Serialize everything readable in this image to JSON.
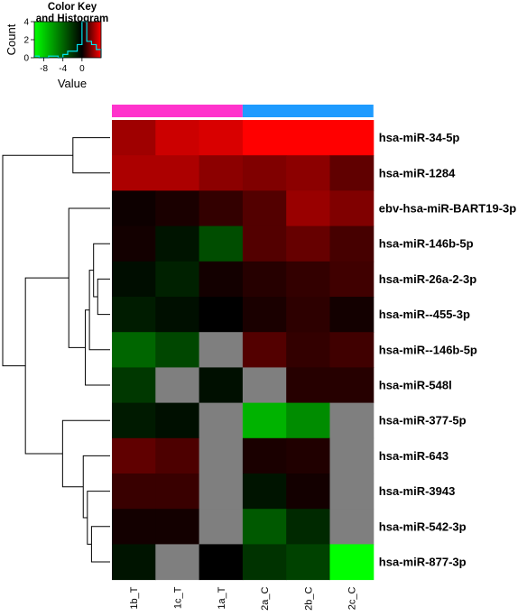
{
  "chart_data": {
    "type": "heatmap",
    "color_key": {
      "title_line1": "Color Key",
      "title_line2": "and Histogram",
      "xlabel": "Value",
      "ylabel": "Count",
      "x_ticks": [
        "-8",
        "-4",
        "0"
      ],
      "x_tick_values": [
        -8,
        -4,
        0
      ],
      "y_ticks": [
        "0",
        "2",
        "4"
      ],
      "y_tick_values": [
        0,
        2,
        4
      ],
      "value_range": [
        -10,
        4
      ],
      "count_range": [
        0,
        4
      ],
      "histogram_line_color": "#00e5ee"
    },
    "columns": [
      "1b_T",
      "1c_T",
      "1a_T",
      "2a_C",
      "2b_C",
      "2c_C"
    ],
    "column_groups": [
      {
        "columns": [
          "1b_T",
          "1c_T",
          "1a_T"
        ],
        "color": "#ff33cc"
      },
      {
        "columns": [
          "2a_C",
          "2b_C",
          "2c_C"
        ],
        "color": "#1e9bff"
      }
    ],
    "rows": [
      "hsa-miR-34-5p",
      "hsa-miR-1284",
      "ebv-hsa-miR-BART19-3p",
      "hsa-miR-146b-5p",
      "hsa-miR-26a-2-3p",
      "hsa-miR--455-3p",
      "hsa-miR--146b-5p",
      "hsa-miR-548l",
      "hsa-miR-377-5p",
      "hsa-miR-643",
      "hsa-miR-3943",
      "hsa-miR-542-3p",
      "hsa-miR-877-3p"
    ],
    "values": [
      [
        2.5,
        3.2,
        3.4,
        4.0,
        4.0,
        4.0
      ],
      [
        2.7,
        2.7,
        2.2,
        2.0,
        2.2,
        1.5
      ],
      [
        0.2,
        0.4,
        0.8,
        1.3,
        2.4,
        2.0
      ],
      [
        0.3,
        -0.8,
        -3.0,
        1.3,
        1.6,
        1.1
      ],
      [
        -0.5,
        -1.3,
        0.3,
        0.6,
        0.8,
        1.0
      ],
      [
        -1.1,
        -0.6,
        0.0,
        0.4,
        0.7,
        0.3
      ],
      [
        -4.0,
        -2.8,
        null,
        1.3,
        0.8,
        1.0
      ],
      [
        -2.2,
        null,
        -0.6,
        null,
        0.6,
        0.6
      ],
      [
        -1.0,
        -0.6,
        null,
        -7.0,
        -5.5,
        null
      ],
      [
        1.5,
        1.2,
        null,
        0.4,
        0.5,
        null
      ],
      [
        0.9,
        0.9,
        null,
        -0.8,
        0.3,
        null
      ],
      [
        0.3,
        0.3,
        null,
        -3.5,
        -1.6,
        null
      ],
      [
        -0.8,
        null,
        0.0,
        -2.0,
        -2.6,
        -10.0
      ]
    ],
    "na_color": "#7f7f7f",
    "dendrogram": [
      {
        "left": -1,
        "right": -2,
        "height": 0.18
      },
      {
        "left": -5,
        "right": -6,
        "height": 0.06
      },
      {
        "left": -4,
        "right": 2,
        "height": 0.08
      },
      {
        "left": -7,
        "right": 3,
        "height": 0.1
      },
      {
        "left": -8,
        "right": 4,
        "height": 0.12
      },
      {
        "left": -3,
        "right": 5,
        "height": 0.2
      },
      {
        "left": -12,
        "right": -13,
        "height": 0.09
      },
      {
        "left": -11,
        "right": 7,
        "height": 0.11
      },
      {
        "left": -10,
        "right": 8,
        "height": 0.13
      },
      {
        "left": -9,
        "right": 9,
        "height": 0.23
      },
      {
        "left": 6,
        "right": 10,
        "height": 0.41
      },
      {
        "left": 1,
        "right": 11,
        "height": 0.52
      }
    ]
  }
}
